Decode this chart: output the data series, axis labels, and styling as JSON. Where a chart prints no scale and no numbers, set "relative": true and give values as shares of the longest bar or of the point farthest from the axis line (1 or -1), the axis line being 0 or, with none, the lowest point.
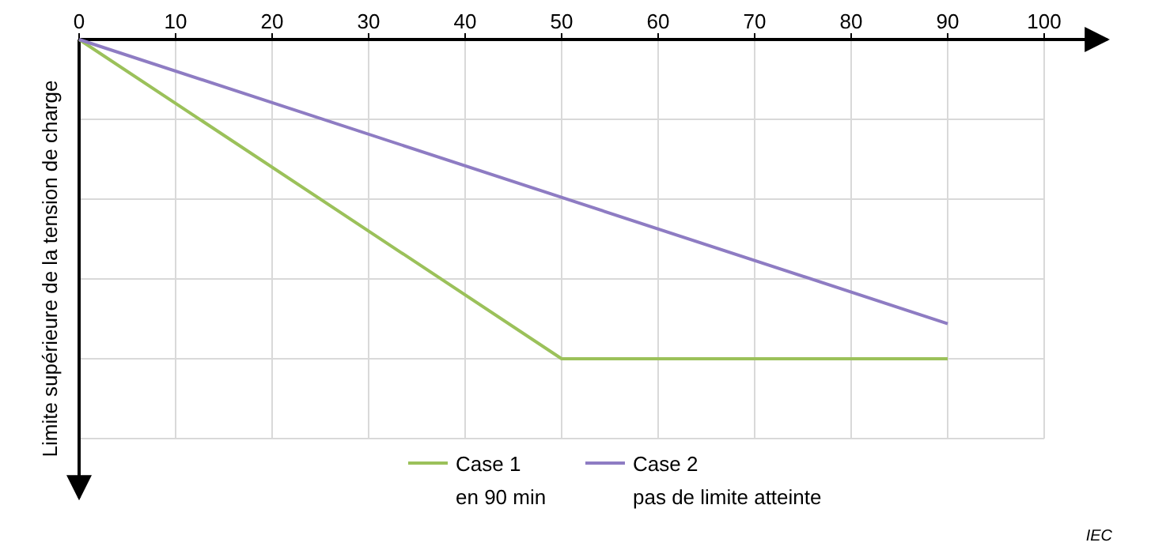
{
  "chart_data": {
    "type": "line",
    "ylabel": "Limite supérieure de la tension de charge",
    "x": [
      0,
      50,
      90
    ],
    "xlim": [
      0,
      100
    ],
    "xticks": [
      0,
      10,
      20,
      30,
      40,
      50,
      60,
      70,
      80,
      90,
      100
    ],
    "relative": true,
    "grid": true,
    "legend": "bottom",
    "line_style": "solid",
    "series": [
      {
        "name": "Case 1\nen 90 min",
        "color": "#9bc15a",
        "values": [
          0,
          -1,
          -1
        ]
      },
      {
        "name": "Case 2\npas de limite atteinte",
        "color": "#8e7cc3",
        "x": [
          0,
          90
        ],
        "values": [
          0,
          -0.89
        ]
      }
    ],
    "annotations": [
      "IEC"
    ]
  }
}
